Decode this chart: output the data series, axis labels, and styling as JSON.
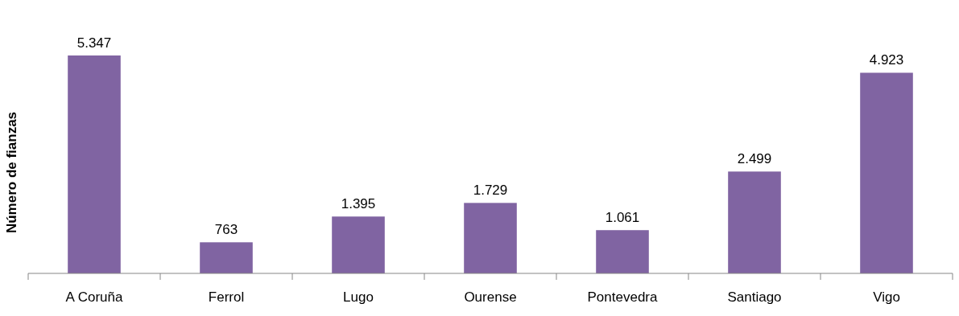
{
  "chart_data": {
    "type": "bar",
    "ylabel": "Número de fianzas",
    "categories": [
      "A Coruña",
      "Ferrol",
      "Lugo",
      "Ourense",
      "Pontevedra",
      "Santiago",
      "Vigo"
    ],
    "values": [
      5347,
      763,
      1395,
      1729,
      1061,
      2499,
      4923
    ],
    "value_labels": [
      "5.347",
      "763",
      "1.395",
      "1.729",
      "1.061",
      "2.499",
      "4.923"
    ],
    "color": "#8064a2"
  }
}
